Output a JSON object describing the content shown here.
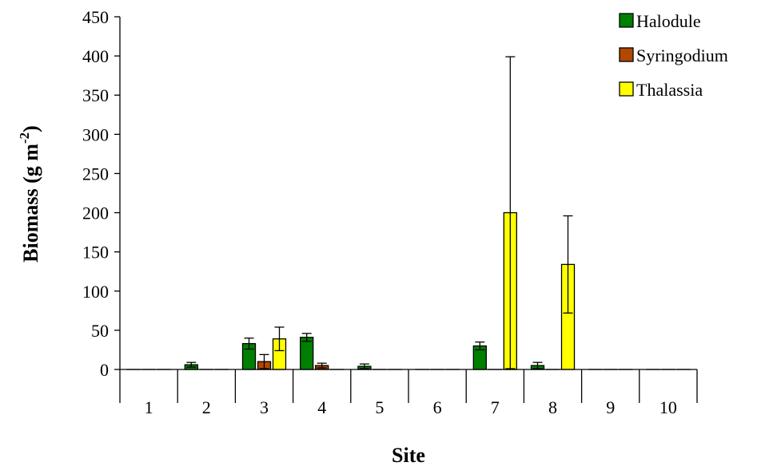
{
  "chart_data": {
    "type": "bar",
    "title": "",
    "xlabel": "Site",
    "ylabel_main": "Biomass (g m",
    "ylabel_sup": "-2",
    "ylabel_end": ")",
    "ylim": [
      0,
      450
    ],
    "yticks": [
      0,
      50,
      100,
      150,
      200,
      250,
      300,
      350,
      400,
      450
    ],
    "grid": false,
    "legend_position": "top-right",
    "categories": [
      "1",
      "2",
      "3",
      "4",
      "5",
      "6",
      "7",
      "8",
      "9",
      "10"
    ],
    "series": [
      {
        "name": "Halodule",
        "color": "#008000",
        "values": [
          0,
          6,
          33,
          41,
          4,
          0,
          30,
          5,
          0,
          0
        ],
        "errors": [
          0,
          3,
          7,
          5,
          3,
          0,
          5,
          4,
          0,
          0
        ]
      },
      {
        "name": "Syringodium",
        "color": "#b34700",
        "values": [
          0,
          0,
          10,
          5,
          0,
          0,
          0,
          0,
          0,
          0
        ],
        "errors": [
          0,
          0,
          9,
          3,
          0,
          0,
          0,
          0,
          0,
          0
        ]
      },
      {
        "name": "Thalassia",
        "color": "#ffff00",
        "values": [
          0,
          0,
          39,
          0,
          0,
          0,
          200,
          134,
          0,
          0
        ],
        "errors": [
          0,
          0,
          15,
          0,
          0,
          0,
          199,
          62,
          0,
          0
        ]
      }
    ]
  }
}
